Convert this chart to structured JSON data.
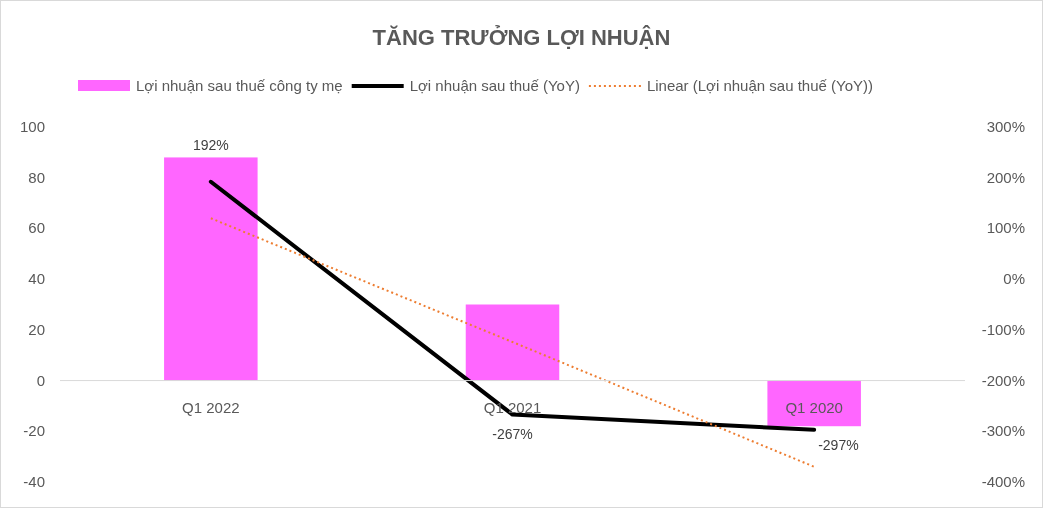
{
  "chart_data": {
    "type": "bar",
    "title": "TĂNG TRƯỞNG LỢI NHUẬN",
    "categories": [
      "Q1 2022",
      "Q1 2021",
      "Q1 2020"
    ],
    "series": [
      {
        "name": "Lợi nhuận sau thuế công ty mẹ",
        "color": "#ff66ff",
        "values": [
          88,
          30,
          -18
        ]
      },
      {
        "name": "Lợi nhuận sau thuế (YoY)",
        "type": "line",
        "axis": "y2",
        "color": "#000000",
        "values": [
          192,
          -267,
          -297
        ],
        "value_labels": [
          "192%",
          "-267%",
          "-297%"
        ]
      },
      {
        "name": "Linear (Lợi nhuận sau thuế (YoY))",
        "type": "line",
        "axis": "y2",
        "color": "#ed7d31",
        "line_style": "dotted",
        "values": [
          120,
          -124,
          -370
        ]
      }
    ],
    "ylim": [
      -40,
      100
    ],
    "yticks": [
      -40,
      -20,
      0,
      20,
      40,
      60,
      80,
      100
    ],
    "y2lim": [
      -400,
      300
    ],
    "y2ticks": [
      {
        "value": -400,
        "label": "-400%"
      },
      {
        "value": -300,
        "label": "-300%"
      },
      {
        "value": -200,
        "label": "-200%"
      },
      {
        "value": -100,
        "label": "-100%"
      },
      {
        "value": 0,
        "label": "0%"
      },
      {
        "value": 100,
        "label": "100%"
      },
      {
        "value": 200,
        "label": "200%"
      },
      {
        "value": 300,
        "label": "300%"
      }
    ],
    "legend": "top"
  }
}
